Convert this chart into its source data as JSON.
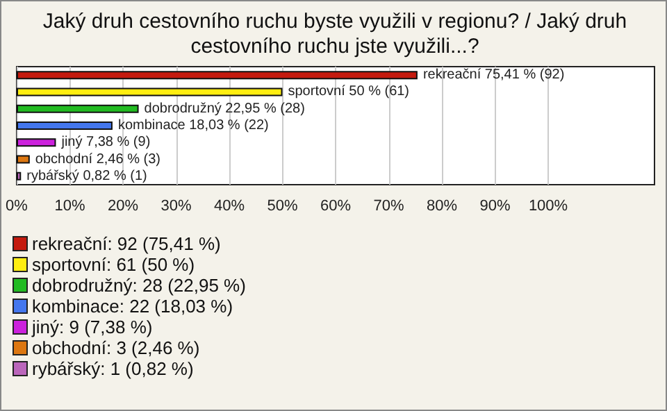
{
  "chart_data": {
    "type": "bar",
    "orientation": "horizontal",
    "title": "Jaký druh cestovního ruchu byste využili v regionu? / Jaký druh cestovního ruchu jste využili...?",
    "categories": [
      null,
      null,
      null,
      null,
      null,
      null,
      null
    ],
    "values": [
      75.41,
      50,
      22.95,
      18.03,
      7.38,
      2.46,
      0.82
    ],
    "value_labels": [
      "rekreační 75,41 % (92)",
      "sportovní 50 % (61)",
      "dobrodružný 22,95 % (28)",
      "kombinace 18,03 % (22)",
      "jiný 7,38 % (9)",
      "obchodní 2,46 % (3)",
      "rybářský 0,82 % (1)"
    ],
    "colors": [
      "#c41a0e",
      "#ffee11",
      "#22bb22",
      "#4477ee",
      "#cc22dd",
      "#dd7711",
      "#bb66bb"
    ],
    "xlim": [
      0,
      120
    ],
    "xticks": [
      {
        "value": 0,
        "label": "0%"
      },
      {
        "value": 10,
        "label": "10%"
      },
      {
        "value": 20,
        "label": "20%"
      },
      {
        "value": 30,
        "label": "30%"
      },
      {
        "value": 40,
        "label": "40%"
      },
      {
        "value": 50,
        "label": "50%"
      },
      {
        "value": 60,
        "label": "60%"
      },
      {
        "value": 70,
        "label": "70%"
      },
      {
        "value": 80,
        "label": "80%"
      },
      {
        "value": 90,
        "label": "90%"
      },
      {
        "value": 100,
        "label": "100%"
      }
    ],
    "grid": "x",
    "tick_labels": "x",
    "annotations": [
      "rekreační: 92 (75,41 %)",
      "sportovní: 61 (50 %)",
      "dobrodružný: 28 (22,95 %)",
      "kombinace: 22 (18,03 %)",
      "jiný: 9 (7,38 %)",
      "obchodní: 3 (2,46 %)",
      "rybářský: 1 (0,82 %)"
    ]
  }
}
